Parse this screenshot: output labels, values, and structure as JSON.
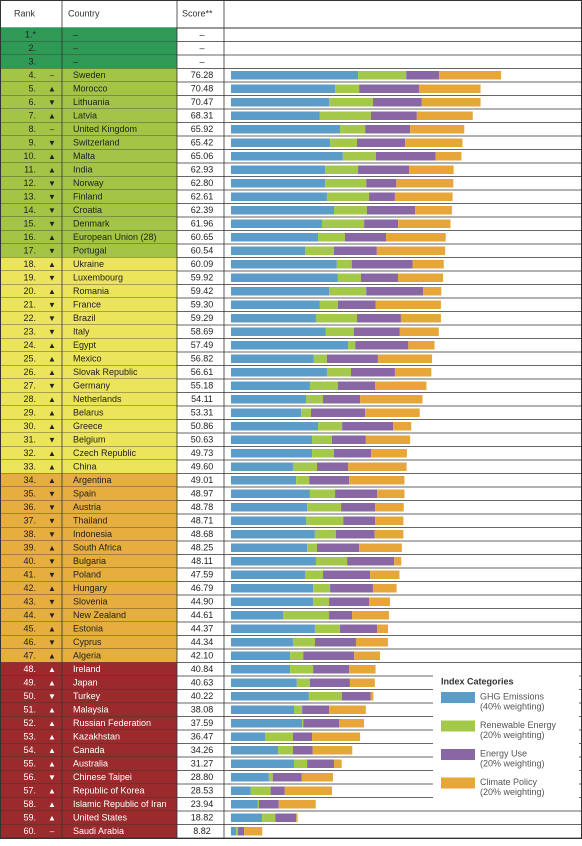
{
  "chart_data": {
    "type": "table-bar",
    "headers": [
      "Rank",
      "Country",
      "Score**"
    ],
    "ranks": [
      "1.*",
      "2.",
      "3.",
      "4.",
      "5.",
      "6.",
      "7.",
      "8.",
      "9.",
      "10.",
      "11.",
      "12.",
      "13.",
      "14.",
      "15.",
      "16.",
      "17.",
      "18.",
      "19.",
      "20.",
      "21.",
      "22.",
      "23.",
      "24.",
      "25.",
      "26.",
      "27.",
      "28.",
      "29.",
      "30.",
      "31.",
      "32.",
      "33.",
      "34.",
      "35.",
      "36.",
      "37.",
      "38.",
      "39.",
      "40.",
      "41.",
      "42.",
      "43.",
      "44.",
      "45.",
      "46.",
      "47.",
      "48.",
      "49.",
      "50.",
      "51.",
      "52.",
      "53.",
      "54.",
      "55.",
      "56.",
      "57.",
      "58.",
      "59.",
      "60."
    ],
    "trends": [
      null,
      null,
      null,
      "–",
      "▲",
      "▼",
      "▲",
      "–",
      "▼",
      "▲",
      "▲",
      "▼",
      "▼",
      "▼",
      "▼",
      "▲",
      "▼",
      "▲",
      "▼",
      "▲",
      "▼",
      "▼",
      "▼",
      "▲",
      "▲",
      "▲",
      "▼",
      "▲",
      "▲",
      "▲",
      "▼",
      "▲",
      "▲",
      "▲",
      "▼",
      "▼",
      "▼",
      "▼",
      "▲",
      "▼",
      "▼",
      "▲",
      "▼",
      "▼",
      "▲",
      "▼",
      "▲",
      "▲",
      "▲",
      "▼",
      "▲",
      "▲",
      "▲",
      "▲",
      "▲",
      "▼",
      "▲",
      "▲",
      "▲",
      "–"
    ],
    "categories": [
      "–",
      "–",
      "–",
      "Sweden",
      "Morocco",
      "Lithuania",
      "Latvia",
      "United Kingdom",
      "Switzerland",
      "Malta",
      "India",
      "Norway",
      "Finland",
      "Croatia",
      "Denmark",
      "European Union (28)",
      "Portugal",
      "Ukraine",
      "Luxembourg",
      "Romania",
      "France",
      "Brazil",
      "Italy",
      "Egypt",
      "Mexico",
      "Slovak Republic",
      "Germany",
      "Netherlands",
      "Belarus",
      "Greece",
      "Belgium",
      "Czech Republic",
      "China",
      "Argentina",
      "Spain",
      "Austria",
      "Thailand",
      "Indonesia",
      "South Africa",
      "Bulgaria",
      "Poland",
      "Hungary",
      "Slovenia",
      "New Zealand",
      "Estonia",
      "Cyprus",
      "Algeria",
      "Ireland",
      "Japan",
      "Turkey",
      "Malaysia",
      "Russian Federation",
      "Kazakhstan",
      "Canada",
      "Australia",
      "Chinese Taipei",
      "Republic of Korea",
      "Islamic Republic of Iran",
      "United States",
      "Saudi Arabia"
    ],
    "scores": [
      "–",
      "–",
      "–",
      "76.28",
      "70.48",
      "70.47",
      "68.31",
      "65.92",
      "65.42",
      "65.06",
      "62.93",
      "62.80",
      "62.61",
      "62.39",
      "61.96",
      "60.65",
      "60.54",
      "60.09",
      "59.92",
      "59.42",
      "59.30",
      "59.29",
      "58.69",
      "57.49",
      "56.82",
      "56.61",
      "55.18",
      "54.11",
      "53.31",
      "50.86",
      "50.63",
      "49.73",
      "49.60",
      "49.01",
      "48.97",
      "48.78",
      "48.71",
      "48.68",
      "48.25",
      "48.11",
      "47.59",
      "46.79",
      "44.90",
      "44.61",
      "44.37",
      "44.34",
      "42.10",
      "40.84",
      "40.63",
      "40.22",
      "38.08",
      "37.59",
      "36.47",
      "34.26",
      "31.27",
      "28.80",
      "28.53",
      "23.94",
      "18.82",
      "8.82"
    ],
    "row_colors": [
      "#2f9a55",
      "#2f9a55",
      "#2f9a55",
      "#a3c446",
      "#a3c446",
      "#a3c446",
      "#a3c446",
      "#a3c446",
      "#a3c446",
      "#a3c446",
      "#a3c446",
      "#a3c446",
      "#a3c446",
      "#a3c446",
      "#a3c446",
      "#a3c446",
      "#a3c446",
      "#ece45a",
      "#ece45a",
      "#ece45a",
      "#ece45a",
      "#ece45a",
      "#ece45a",
      "#ece45a",
      "#ece45a",
      "#ece45a",
      "#ece45a",
      "#ece45a",
      "#ece45a",
      "#ece45a",
      "#ece45a",
      "#ece45a",
      "#ece45a",
      "#e6ae3e",
      "#e6ae3e",
      "#e6ae3e",
      "#e6ae3e",
      "#e6ae3e",
      "#e6ae3e",
      "#e6ae3e",
      "#e6ae3e",
      "#e6ae3e",
      "#e6ae3e",
      "#e6ae3e",
      "#e6ae3e",
      "#e6ae3e",
      "#e6ae3e",
      "#9b2a2d",
      "#9b2a2d",
      "#9b2a2d",
      "#9b2a2d",
      "#9b2a2d",
      "#9b2a2d",
      "#9b2a2d",
      "#9b2a2d",
      "#9b2a2d",
      "#9b2a2d",
      "#9b2a2d",
      "#9b2a2d",
      "#9b2a2d"
    ],
    "legend_title": "Index Categories",
    "series": [
      {
        "name": "GHG Emissions",
        "note": "(40% weighting)",
        "color": "#5b9cc8",
        "values": [
          null,
          null,
          null,
          35.9,
          29.4,
          27.7,
          25.1,
          30.8,
          28.0,
          31.6,
          26.6,
          26.6,
          27.1,
          29.1,
          25.7,
          24.6,
          20.9,
          29.9,
          30.2,
          27.7,
          25.1,
          24.0,
          26.8,
          33.1,
          23.4,
          27.1,
          22.3,
          21.2,
          19.8,
          24.6,
          22.9,
          22.9,
          17.5,
          18.4,
          22.3,
          21.5,
          21.2,
          23.7,
          21.5,
          24.0,
          20.9,
          23.2,
          23.2,
          14.7,
          23.7,
          17.5,
          16.7,
          16.7,
          18.6,
          22.0,
          17.8,
          20.1,
          9.6,
          13.3,
          17.8,
          10.7,
          5.6,
          7.6,
          8.8,
          1.4
        ]
      },
      {
        "name": "Renewable Energy",
        "note": "(20% weighting)",
        "color": "#a4c84a",
        "values": [
          null,
          null,
          null,
          13.6,
          6.8,
          12.4,
          14.4,
          7.1,
          7.6,
          9.3,
          9.3,
          11.6,
          11.9,
          9.3,
          11.9,
          7.6,
          8.2,
          4.2,
          6.5,
          10.5,
          5.1,
          11.6,
          7.9,
          2.0,
          3.7,
          6.8,
          7.9,
          4.8,
          2.8,
          6.8,
          5.6,
          6.2,
          6.8,
          3.7,
          7.1,
          9.6,
          10.5,
          5.9,
          2.8,
          8.8,
          5.1,
          4.8,
          4.5,
          13.0,
          7.1,
          6.2,
          3.7,
          6.5,
          3.7,
          9.3,
          2.3,
          0.3,
          7.9,
          4.2,
          3.7,
          1.1,
          5.6,
          0.3,
          3.7,
          0.6
        ]
      },
      {
        "name": "Energy Use",
        "note": "(20% weighting)",
        "color": "#8867a4",
        "values": [
          null,
          null,
          null,
          9.3,
          16.9,
          13.8,
          13.0,
          12.7,
          13.6,
          16.9,
          14.4,
          8.5,
          7.3,
          13.6,
          9.6,
          11.6,
          12.1,
          17.2,
          10.5,
          16.1,
          10.7,
          12.4,
          13.0,
          15.0,
          14.4,
          12.4,
          10.5,
          10.5,
          15.3,
          14.4,
          9.6,
          10.5,
          8.8,
          11.3,
          11.9,
          9.6,
          9.0,
          11.0,
          11.9,
          13.3,
          13.3,
          12.1,
          11.3,
          6.5,
          10.5,
          11.6,
          14.4,
          10.2,
          11.3,
          8.2,
          7.6,
          10.2,
          5.4,
          5.6,
          7.6,
          8.2,
          4.0,
          5.6,
          5.9,
          1.7
        ]
      },
      {
        "name": "Climate Policy",
        "note": "(20% weighting)",
        "color": "#e7a63a",
        "values": [
          null,
          null,
          null,
          17.5,
          17.4,
          16.6,
          15.8,
          15.3,
          16.2,
          7.3,
          12.6,
          16.1,
          16.3,
          10.4,
          14.8,
          16.85,
          19.3,
          8.8,
          12.7,
          5.1,
          18.4,
          11.3,
          11.0,
          7.4,
          15.3,
          10.3,
          14.5,
          17.6,
          15.4,
          5.1,
          12.5,
          10.1,
          16.5,
          15.6,
          7.7,
          8.1,
          8.0,
          8.1,
          12.05,
          2.0,
          8.29,
          6.69,
          5.9,
          10.41,
          3.07,
          9.04,
          7.3,
          7.44,
          7.03,
          0.72,
          10.38,
          6.99,
          13.57,
          11.16,
          2.17,
          8.8,
          13.33,
          10.44,
          0.42,
          5.12
        ]
      }
    ]
  }
}
